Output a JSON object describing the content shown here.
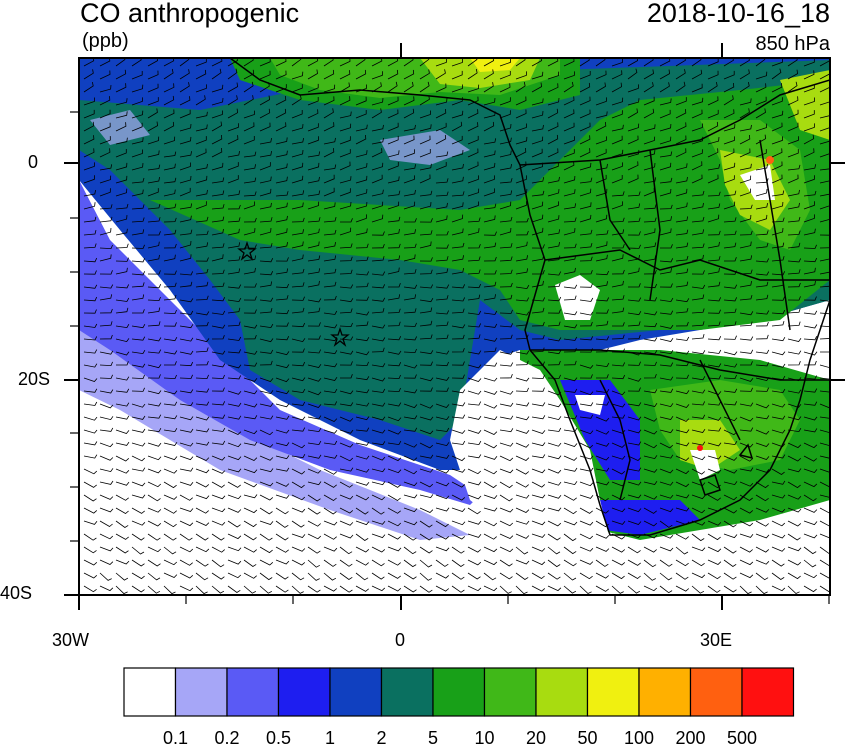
{
  "header": {
    "title": "CO anthropogenic",
    "units": "(ppb)",
    "datetime": "2018-10-16_18",
    "level": "850 hPa"
  },
  "axes": {
    "y_labels": [
      "0",
      "20S",
      "40S"
    ],
    "x_labels": [
      "30W",
      "0",
      "30E"
    ]
  },
  "legend": {
    "colors": [
      "#ffffff",
      "#a6a6f7",
      "#5a5af5",
      "#1e1ef0",
      "#1040c0",
      "#0a7060",
      "#18a018",
      "#40b818",
      "#a8dc10",
      "#f0f010",
      "#ffb000",
      "#ff6010",
      "#ff1010"
    ],
    "labels": [
      "0.1",
      "0.2",
      "0.5",
      "1",
      "2",
      "5",
      "10",
      "20",
      "50",
      "100",
      "200",
      "500"
    ]
  },
  "markers": [
    "star",
    "star"
  ]
}
